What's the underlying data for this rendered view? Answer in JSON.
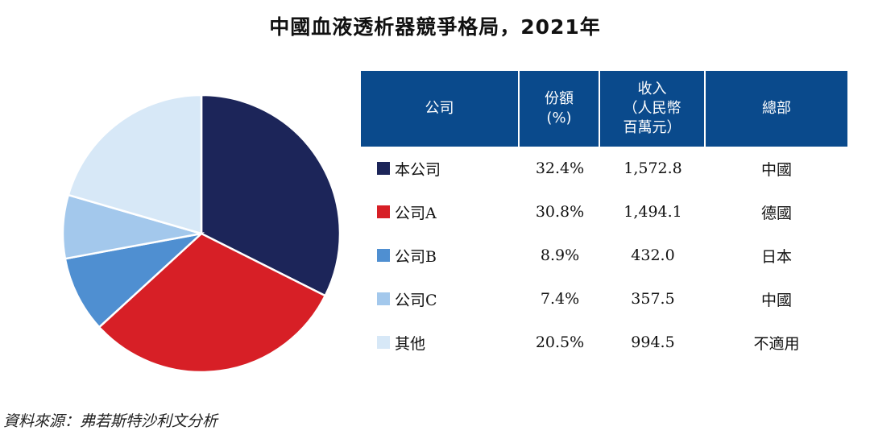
{
  "title": "中國血液透析器競爭格局，2021年",
  "table": {
    "headers": [
      "公司",
      "份額\n(%)",
      "收入\n（人民幣\n百萬元）",
      "總部"
    ],
    "rows": [
      {
        "company": "本公司",
        "share": "32.4%",
        "revenue": "1,572.8",
        "hq": "中國",
        "color": "#1c2559"
      },
      {
        "company": "公司A",
        "share": "30.8%",
        "revenue": "1,494.1",
        "hq": "德國",
        "color": "#d71f26"
      },
      {
        "company": "公司B",
        "share": "8.9%",
        "revenue": "432.0",
        "hq": "日本",
        "color": "#4f8fd1"
      },
      {
        "company": "公司C",
        "share": "7.4%",
        "revenue": "357.5",
        "hq": "中國",
        "color": "#a3c8ec"
      },
      {
        "company": "其他",
        "share": "20.5%",
        "revenue": "994.5",
        "hq": "不適用",
        "color": "#d7e8f7"
      }
    ]
  },
  "source": "資料來源：弗若斯特沙利文分析",
  "chart_data": {
    "type": "pie",
    "title": "中國血液透析器競爭格局，2021年",
    "categories": [
      "本公司",
      "公司A",
      "公司B",
      "公司C",
      "其他"
    ],
    "values": [
      32.4,
      30.8,
      8.9,
      7.4,
      20.5
    ],
    "colors": [
      "#1c2559",
      "#d71f26",
      "#4f8fd1",
      "#a3c8ec",
      "#d7e8f7"
    ],
    "start": "12 o'clock",
    "direction": "clockwise"
  }
}
